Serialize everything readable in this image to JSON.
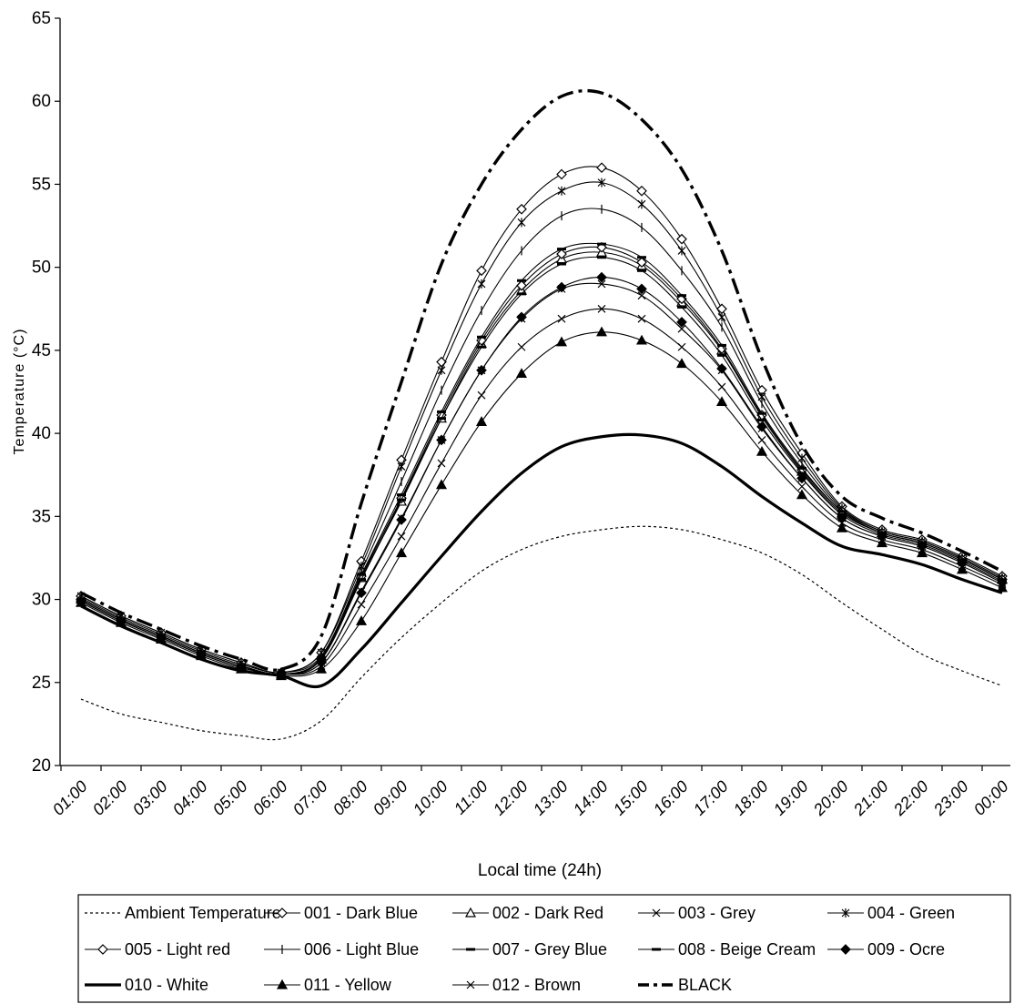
{
  "chart_data": {
    "type": "line",
    "title": "",
    "xlabel": "Local time (24h)",
    "ylabel": "Temperature (°C)",
    "ylim": [
      20,
      65
    ],
    "yticks": [
      20,
      25,
      30,
      35,
      40,
      45,
      50,
      55,
      60,
      65
    ],
    "grid": false,
    "legend_position": "bottom",
    "categories": [
      "01:00",
      "02:00",
      "03:00",
      "04:00",
      "05:00",
      "06:00",
      "07:00",
      "08:00",
      "09:00",
      "10:00",
      "11:00",
      "12:00",
      "13:00",
      "14:00",
      "15:00",
      "16:00",
      "17:00",
      "18:00",
      "19:00",
      "20:00",
      "21:00",
      "22:00",
      "23:00",
      "00:00"
    ],
    "series": [
      {
        "name": "Ambient Temperature",
        "style": "dotted",
        "marker": "none",
        "values": [
          24.0,
          23.1,
          22.6,
          22.1,
          21.8,
          21.6,
          22.7,
          25.3,
          27.7,
          29.8,
          31.7,
          33.0,
          33.8,
          34.2,
          34.4,
          34.2,
          33.6,
          32.8,
          31.5,
          29.8,
          28.2,
          26.7,
          25.7,
          24.8
        ]
      },
      {
        "name": "001 - Dark Blue",
        "style": "solid",
        "marker": "diamond-open",
        "values": [
          30.2,
          29.0,
          28.0,
          27.0,
          26.2,
          25.6,
          26.8,
          32.3,
          38.4,
          44.3,
          49.8,
          53.5,
          55.6,
          56.0,
          54.6,
          51.7,
          47.5,
          42.6,
          38.8,
          35.6,
          34.2,
          33.6,
          32.6,
          31.4
        ]
      },
      {
        "name": "002 - Dark Red",
        "style": "solid",
        "marker": "triangle-open",
        "values": [
          30.0,
          28.8,
          27.8,
          26.8,
          26.0,
          25.5,
          26.4,
          31.3,
          35.9,
          40.9,
          45.4,
          48.6,
          50.5,
          50.9,
          50.1,
          47.9,
          45.0,
          41.0,
          37.7,
          35.2,
          34.0,
          33.4,
          32.4,
          31.2
        ]
      },
      {
        "name": "003 - Grey",
        "style": "solid",
        "marker": "x",
        "values": [
          29.9,
          28.7,
          27.7,
          26.7,
          25.9,
          25.5,
          26.2,
          30.5,
          34.9,
          39.6,
          43.8,
          46.9,
          48.7,
          49.0,
          48.3,
          46.3,
          43.8,
          40.3,
          37.3,
          34.9,
          33.8,
          33.2,
          32.2,
          31.0
        ]
      },
      {
        "name": "004 - Green",
        "style": "solid",
        "marker": "star",
        "values": [
          30.2,
          29.0,
          28.0,
          27.0,
          26.2,
          25.6,
          26.8,
          32.0,
          38.0,
          43.8,
          49.0,
          52.7,
          54.6,
          55.1,
          53.8,
          51.0,
          47.0,
          42.2,
          38.5,
          35.5,
          34.1,
          33.5,
          32.5,
          31.3
        ]
      },
      {
        "name": "005 - Light red",
        "style": "solid",
        "marker": "diamond-open",
        "values": [
          30.0,
          28.8,
          27.8,
          26.8,
          26.0,
          25.5,
          26.4,
          31.4,
          36.1,
          41.1,
          45.6,
          48.9,
          50.8,
          51.2,
          50.3,
          48.1,
          45.1,
          41.1,
          37.8,
          35.3,
          34.0,
          33.4,
          32.4,
          31.2
        ]
      },
      {
        "name": "006 - Light Blue",
        "style": "solid",
        "marker": "plus",
        "values": [
          30.1,
          28.9,
          27.9,
          26.9,
          26.1,
          25.6,
          26.6,
          31.7,
          37.1,
          42.6,
          47.4,
          51.0,
          53.1,
          53.5,
          52.4,
          49.8,
          46.4,
          41.8,
          38.2,
          35.4,
          34.1,
          33.5,
          32.5,
          31.3
        ]
      },
      {
        "name": "007 - Grey Blue",
        "style": "solid",
        "marker": "dash",
        "values": [
          30.0,
          28.8,
          27.8,
          26.8,
          26.0,
          25.5,
          26.5,
          31.5,
          36.3,
          41.3,
          45.8,
          49.2,
          51.1,
          51.4,
          50.6,
          48.3,
          45.3,
          41.2,
          37.9,
          35.3,
          34.0,
          33.4,
          32.4,
          31.2
        ]
      },
      {
        "name": "008 - Beige Cream",
        "style": "solid",
        "marker": "dash",
        "values": [
          30.0,
          28.8,
          27.8,
          26.8,
          26.0,
          25.5,
          26.4,
          31.2,
          36.0,
          40.9,
          45.2,
          48.4,
          50.2,
          50.6,
          49.8,
          47.6,
          44.7,
          40.8,
          37.6,
          35.1,
          33.9,
          33.3,
          32.3,
          31.1
        ]
      },
      {
        "name": "009 - Ocre",
        "style": "solid",
        "marker": "diamond-filled",
        "values": [
          29.9,
          28.7,
          27.7,
          26.7,
          25.9,
          25.5,
          26.2,
          30.4,
          34.8,
          39.6,
          43.8,
          47.0,
          48.8,
          49.4,
          48.7,
          46.7,
          43.9,
          40.4,
          37.3,
          34.9,
          33.8,
          33.2,
          32.2,
          31.0
        ]
      },
      {
        "name": "010 - White",
        "style": "bold",
        "marker": "none",
        "values": [
          29.6,
          28.4,
          27.4,
          26.4,
          25.7,
          25.4,
          24.8,
          27.0,
          29.8,
          32.6,
          35.3,
          37.6,
          39.2,
          39.8,
          39.9,
          39.4,
          38.0,
          36.2,
          34.6,
          33.2,
          32.7,
          32.1,
          31.2,
          30.4
        ]
      },
      {
        "name": "011 - Yellow",
        "style": "solid",
        "marker": "triangle-filled",
        "values": [
          29.8,
          28.6,
          27.6,
          26.6,
          25.8,
          25.4,
          25.8,
          28.7,
          32.8,
          36.9,
          40.7,
          43.6,
          45.5,
          46.1,
          45.6,
          44.2,
          41.9,
          38.9,
          36.3,
          34.3,
          33.4,
          32.8,
          31.8,
          30.7
        ]
      },
      {
        "name": "012 - Brown",
        "style": "solid",
        "marker": "x",
        "values": [
          29.9,
          28.7,
          27.7,
          26.7,
          25.9,
          25.5,
          26.0,
          29.7,
          33.8,
          38.2,
          42.3,
          45.2,
          46.9,
          47.5,
          46.9,
          45.2,
          42.8,
          39.6,
          36.8,
          34.6,
          33.6,
          33.0,
          32.0,
          30.9
        ]
      },
      {
        "name": "BLACK",
        "style": "dashdot",
        "marker": "none",
        "values": [
          30.4,
          29.2,
          28.2,
          27.2,
          26.4,
          25.8,
          27.8,
          35.8,
          43.1,
          50.2,
          55.0,
          58.3,
          60.3,
          60.5,
          58.9,
          55.9,
          51.0,
          44.5,
          39.3,
          36.2,
          34.9,
          34.0,
          32.9,
          31.7
        ]
      }
    ]
  }
}
